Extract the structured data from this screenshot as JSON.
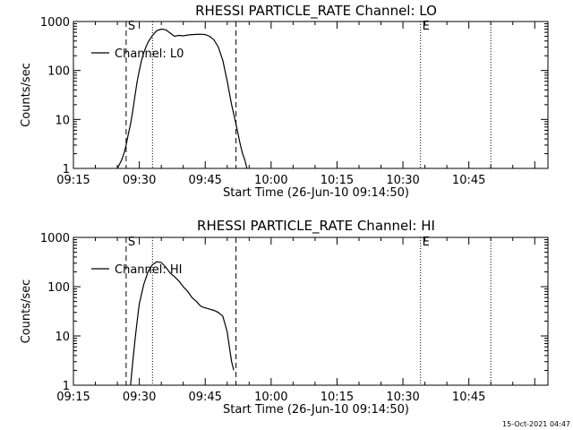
{
  "footer_stamp": "15-Oct-2021 04:47",
  "chart_data": [
    {
      "type": "line",
      "title": "RHESSI PARTICLE_RATE Channel: LO",
      "xlabel": "Start Time (26-Jun-10 09:14:50)",
      "ylabel": "Counts/sec",
      "y_scale": "log",
      "ylim": [
        1,
        1000
      ],
      "xlim": [
        "09:15",
        "11:03"
      ],
      "x_ticks": [
        "09:15",
        "09:30",
        "09:45",
        "10:00",
        "10:15",
        "10:30",
        "10:45"
      ],
      "y_ticks": [
        "1",
        "10",
        "100",
        "1000"
      ],
      "legend": {
        "position": "top-left",
        "entries": [
          "Channel: L0"
        ]
      },
      "markers": [
        {
          "label": "S",
          "time": "09:27",
          "style": "dashed"
        },
        {
          "label": "",
          "time": "09:33",
          "style": "dotted"
        },
        {
          "label": "",
          "time": "09:52",
          "style": "dashed"
        },
        {
          "label": "E",
          "time": "10:34",
          "style": "dotted"
        },
        {
          "label": "",
          "time": "10:50",
          "style": "dotted"
        }
      ],
      "series": [
        {
          "name": "Channel: L0",
          "x": [
            "09:25:00",
            "09:26:00",
            "09:26:30",
            "09:27:00",
            "09:27:30",
            "09:28:00",
            "09:28:30",
            "09:29:00",
            "09:29:30",
            "09:30:00",
            "09:30:30",
            "09:31:00",
            "09:31:30",
            "09:32:00",
            "09:33:00",
            "09:34:00",
            "09:35:00",
            "09:36:00",
            "09:37:00",
            "09:38:00",
            "09:39:00",
            "09:40:00",
            "09:41:00",
            "09:42:00",
            "09:43:00",
            "09:44:00",
            "09:45:00",
            "09:46:00",
            "09:47:00",
            "09:48:00",
            "09:49:00",
            "09:50:00",
            "09:51:00",
            "09:52:00",
            "09:53:00",
            "09:53:30",
            "09:54:00",
            "09:54:30"
          ],
          "y": [
            1,
            1.5,
            2,
            3,
            5,
            8,
            15,
            30,
            60,
            100,
            160,
            230,
            300,
            380,
            520,
            650,
            700,
            680,
            580,
            500,
            520,
            510,
            530,
            540,
            545,
            550,
            540,
            500,
            420,
            300,
            160,
            60,
            20,
            8,
            3,
            2,
            1.5,
            1
          ]
        }
      ]
    },
    {
      "type": "line",
      "title": "RHESSI PARTICLE_RATE Channel: HI",
      "xlabel": "Start Time (26-Jun-10 09:14:50)",
      "ylabel": "Counts/sec",
      "y_scale": "log",
      "ylim": [
        1,
        1000
      ],
      "xlim": [
        "09:15",
        "11:03"
      ],
      "x_ticks": [
        "09:15",
        "09:30",
        "09:45",
        "10:00",
        "10:15",
        "10:30",
        "10:45"
      ],
      "y_ticks": [
        "1",
        "10",
        "100",
        "1000"
      ],
      "legend": {
        "position": "top-left",
        "entries": [
          "Channel: HI"
        ]
      },
      "markers": [
        {
          "label": "S",
          "time": "09:27",
          "style": "dashed"
        },
        {
          "label": "",
          "time": "09:33",
          "style": "dotted"
        },
        {
          "label": "",
          "time": "09:52",
          "style": "dashed"
        },
        {
          "label": "E",
          "time": "10:34",
          "style": "dotted"
        },
        {
          "label": "",
          "time": "10:50",
          "style": "dotted"
        }
      ],
      "series": [
        {
          "name": "Channel: HI",
          "x": [
            "09:28:00",
            "09:28:30",
            "09:29:00",
            "09:29:30",
            "09:30:00",
            "09:31:00",
            "09:32:00",
            "09:33:00",
            "09:34:00",
            "09:35:00",
            "09:36:00",
            "09:37:00",
            "09:38:00",
            "09:39:00",
            "09:40:00",
            "09:41:00",
            "09:42:00",
            "09:43:00",
            "09:44:00",
            "09:45:00",
            "09:46:00",
            "09:47:00",
            "09:48:00",
            "09:49:00",
            "09:50:00",
            "09:50:30",
            "09:51:00",
            "09:51:30"
          ],
          "y": [
            1,
            3,
            8,
            20,
            45,
            110,
            200,
            280,
            320,
            310,
            250,
            190,
            160,
            130,
            100,
            80,
            60,
            50,
            40,
            37,
            35,
            33,
            30,
            25,
            12,
            6,
            3,
            2
          ]
        }
      ]
    }
  ]
}
